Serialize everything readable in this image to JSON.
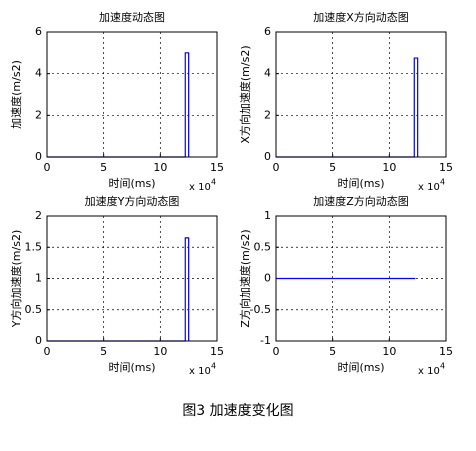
{
  "chart_data": [
    {
      "type": "line",
      "title": "加速度动态图",
      "xlabel": "时间(ms)",
      "ylabel": "加速度(m/s2)",
      "x_multiplier": {
        "base": "x 10",
        "exponent": "4"
      },
      "x": [
        0,
        12.2,
        12.2,
        12.5,
        12.5
      ],
      "values": [
        0,
        0,
        5,
        5,
        0
      ],
      "color": "#0000ff",
      "xlim": [
        0,
        15
      ],
      "xticks": [
        0,
        5,
        10,
        15
      ],
      "ylim": [
        0,
        6
      ],
      "yticks": [
        0,
        2,
        4,
        6
      ],
      "grid": true
    },
    {
      "type": "line",
      "title": "加速度X方向动态图",
      "xlabel": "时间(ms)",
      "ylabel": "X方向加速度(m/s2)",
      "x_multiplier": {
        "base": "x 10",
        "exponent": "4"
      },
      "x": [
        0,
        12.2,
        12.2,
        12.5,
        12.5
      ],
      "values": [
        0,
        0,
        4.75,
        4.75,
        0
      ],
      "color": "#0000ff",
      "xlim": [
        0,
        15
      ],
      "xticks": [
        0,
        5,
        10,
        15
      ],
      "ylim": [
        0,
        6
      ],
      "yticks": [
        0,
        2,
        4,
        6
      ],
      "grid": true
    },
    {
      "type": "line",
      "title": "加速度Y方向动态图",
      "xlabel": "时间(ms)",
      "ylabel": "Y方向加速度(m/s2)",
      "x_multiplier": {
        "base": "x 10",
        "exponent": "4"
      },
      "x": [
        0,
        12.2,
        12.2,
        12.5,
        12.5
      ],
      "values": [
        0,
        0,
        1.65,
        1.65,
        0
      ],
      "color": "#0000ff",
      "xlim": [
        0,
        15
      ],
      "xticks": [
        0,
        5,
        10,
        15
      ],
      "ylim": [
        0,
        2
      ],
      "yticks": [
        0,
        0.5,
        1,
        1.5,
        2
      ],
      "grid": true
    },
    {
      "type": "line",
      "title": "加速度Z方向动态图",
      "xlabel": "时间(ms)",
      "ylabel": "Z方向加速度(m/s2)",
      "x_multiplier": {
        "base": "x 10",
        "exponent": "4"
      },
      "x": [
        0,
        12.3
      ],
      "values": [
        0,
        0
      ],
      "color": "#0000ff",
      "xlim": [
        0,
        15
      ],
      "xticks": [
        0,
        5,
        10,
        15
      ],
      "ylim": [
        -1,
        1
      ],
      "yticks": [
        -1,
        -0.5,
        0,
        0.5,
        1
      ],
      "grid": true
    }
  ],
  "caption": "图3  加速度变化图"
}
